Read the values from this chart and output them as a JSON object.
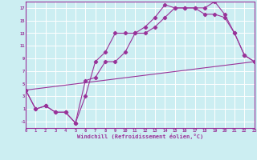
{
  "xlabel": "Windchill (Refroidissement éolien,°C)",
  "bg_color": "#cceef2",
  "line_color": "#993399",
  "grid_color": "#ffffff",
  "xlim": [
    0,
    23
  ],
  "ylim": [
    -2,
    18
  ],
  "xticks": [
    0,
    1,
    2,
    3,
    4,
    5,
    6,
    7,
    8,
    9,
    10,
    11,
    12,
    13,
    14,
    15,
    16,
    17,
    18,
    19,
    20,
    21,
    22,
    23
  ],
  "yticks": [
    -1,
    1,
    3,
    5,
    7,
    9,
    11,
    13,
    15,
    17
  ],
  "line1_x": [
    0,
    1,
    2,
    3,
    4,
    5,
    6,
    7,
    8,
    9,
    10,
    11,
    12,
    13,
    14,
    15,
    16,
    17,
    18,
    19,
    20,
    21,
    22,
    23
  ],
  "line1_y": [
    4,
    1,
    1.5,
    0.5,
    0.5,
    -1.2,
    3,
    8.5,
    10,
    13,
    13,
    13,
    14,
    15.5,
    17.5,
    17,
    17,
    17,
    17,
    18,
    16,
    13,
    9.5,
    8.5
  ],
  "line2_x": [
    0,
    1,
    2,
    3,
    4,
    5,
    6,
    7,
    8,
    9,
    10,
    11,
    12,
    13,
    14,
    15,
    16,
    17,
    18,
    19,
    20,
    21,
    22,
    23
  ],
  "line2_y": [
    4,
    1,
    1.5,
    0.5,
    0.5,
    -1.2,
    5.5,
    6,
    8.5,
    8.5,
    10,
    13,
    13,
    14,
    15.5,
    17,
    17,
    17,
    16,
    16,
    15.5,
    13,
    9.5,
    8.5
  ],
  "line3_x": [
    0,
    23
  ],
  "line3_y": [
    4,
    8.5
  ]
}
